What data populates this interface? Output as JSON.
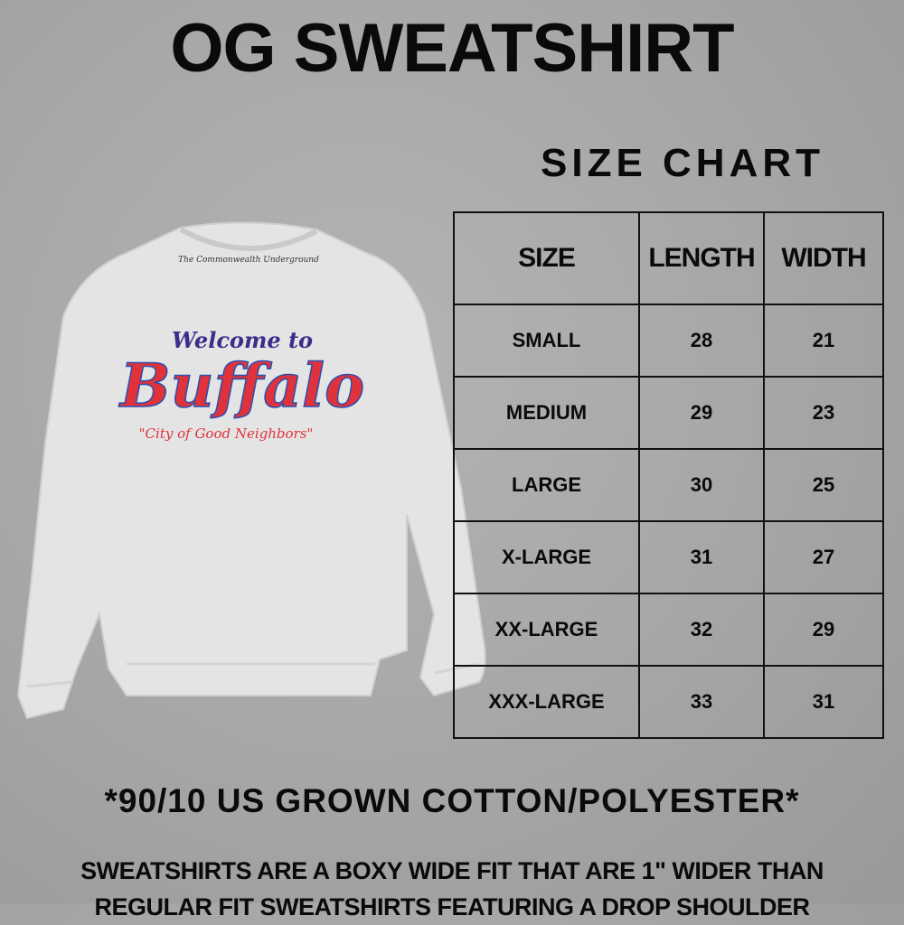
{
  "title": "OG SWEATSHIRT",
  "subtitle": "SIZE CHART",
  "table": {
    "headers": [
      "SIZE",
      "LENGTH",
      "WIDTH"
    ],
    "rows": [
      [
        "SMALL",
        "28",
        "21"
      ],
      [
        "MEDIUM",
        "29",
        "23"
      ],
      [
        "LARGE",
        "30",
        "25"
      ],
      [
        "X-LARGE",
        "31",
        "27"
      ],
      [
        "XX-LARGE",
        "32",
        "29"
      ],
      [
        "XXX-LARGE",
        "33",
        "31"
      ]
    ]
  },
  "material_note": "*90/10 US GROWN COTTON/POLYESTER*",
  "description": [
    "SWEATSHIRTS ARE A BOXY WIDE FIT THAT ARE 1\" WIDER THAN",
    "REGULAR FIT SWEATSHIRTS FEATURING A DROP SHOULDER"
  ],
  "shirt_graphic": {
    "line1": "Welcome to",
    "line2": "Buffalo",
    "line3": "\"City of Good Neighbors\"",
    "label": "The Commonwealth Underground",
    "colors": {
      "red": "#e0323a",
      "blue": "#2a4fb0",
      "fabric": "#e6e6e6"
    }
  }
}
